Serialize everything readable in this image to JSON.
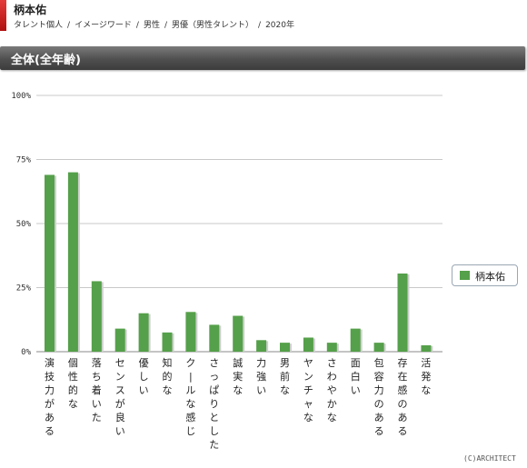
{
  "header": {
    "title": "柄本佑",
    "breadcrumb": [
      "タレント個人",
      "イメージワード",
      "男性",
      "男優（男性タレント）",
      "2020年"
    ],
    "separator": "/"
  },
  "section": {
    "title": "全体(全年齢)"
  },
  "legend": {
    "label": "柄本佑",
    "color": "#55a04a"
  },
  "copyright": "(C)ARCHITECT",
  "chart_data": {
    "type": "bar",
    "categories": [
      "演技力がある",
      "個性的な",
      "落ち着いた",
      "センスが良い",
      "優しい",
      "知的な",
      "クールな感じ",
      "さっぱりとした",
      "誠実な",
      "力強い",
      "男前な",
      "ヤンチャな",
      "さわやかな",
      "面白い",
      "包容力のある",
      "存在感のある",
      "活発な"
    ],
    "series": [
      {
        "name": "柄本佑",
        "values": [
          69,
          70,
          27.5,
          9,
          15,
          7.5,
          15.5,
          10.5,
          14,
          4.5,
          3.5,
          5.5,
          3.5,
          9,
          3.5,
          30.5,
          2.5
        ]
      }
    ],
    "ylim": [
      0,
      100
    ],
    "yticks": [
      0,
      25,
      50,
      75,
      100
    ],
    "ytick_labels": [
      "0%",
      "25%",
      "50%",
      "75%",
      "100%"
    ],
    "grid": true,
    "legend_position": "right"
  }
}
